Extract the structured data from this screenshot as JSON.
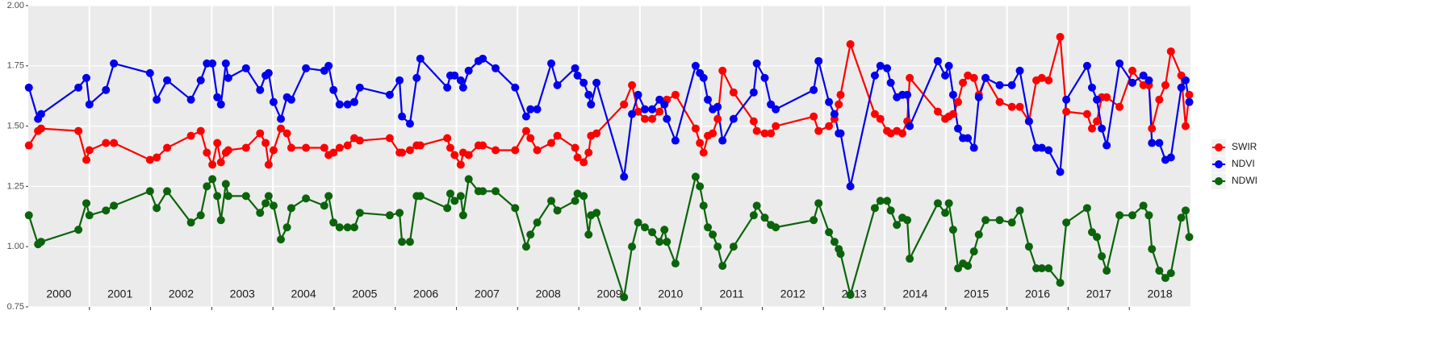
{
  "chart_data": {
    "type": "line",
    "xlim": [
      2000,
      2019
    ],
    "xbreaks": [
      2001,
      2002,
      2003,
      2004,
      2005,
      2006,
      2007,
      2008,
      2009,
      2010,
      2011,
      2012,
      2013,
      2014,
      2015,
      2016,
      2017,
      2018
    ],
    "xticks": [
      {
        "value": 2000.5,
        "label": "2000"
      },
      {
        "value": 2001.5,
        "label": "2001"
      },
      {
        "value": 2002.5,
        "label": "2002"
      },
      {
        "value": 2003.5,
        "label": "2003"
      },
      {
        "value": 2004.5,
        "label": "2004"
      },
      {
        "value": 2005.5,
        "label": "2005"
      },
      {
        "value": 2006.5,
        "label": "2006"
      },
      {
        "value": 2007.5,
        "label": "2007"
      },
      {
        "value": 2008.5,
        "label": "2008"
      },
      {
        "value": 2009.5,
        "label": "2009"
      },
      {
        "value": 2010.5,
        "label": "2010"
      },
      {
        "value": 2011.5,
        "label": "2011"
      },
      {
        "value": 2012.5,
        "label": "2012"
      },
      {
        "value": 2013.5,
        "label": "2013"
      },
      {
        "value": 2014.5,
        "label": "2014"
      },
      {
        "value": 2015.5,
        "label": "2015"
      },
      {
        "value": 2016.5,
        "label": "2016"
      },
      {
        "value": 2017.5,
        "label": "2017"
      },
      {
        "value": 2018.5,
        "label": "2018"
      }
    ],
    "ylim": [
      0.75,
      2.0
    ],
    "yticks": [
      {
        "value": 0.75,
        "label": "0.75"
      },
      {
        "value": 1,
        "label": "1.00"
      },
      {
        "value": 1.25,
        "label": "1.25"
      },
      {
        "value": 1.5,
        "label": "1.50"
      },
      {
        "value": 1.75,
        "label": "1.75"
      },
      {
        "value": 2,
        "label": "2.00"
      }
    ],
    "grid": true,
    "legend": "right",
    "x": [
      2000.01,
      2000.16,
      2000.21,
      2000.82,
      2000.95,
      2001.0,
      2001.27,
      2001.4,
      2001.99,
      2002.1,
      2002.27,
      2002.66,
      2002.82,
      2002.92,
      2003.01,
      2003.09,
      2003.15,
      2003.23,
      2003.27,
      2003.56,
      2003.79,
      2003.88,
      2003.93,
      2004.01,
      2004.13,
      2004.23,
      2004.3,
      2004.54,
      2004.84,
      2004.91,
      2004.99,
      2005.09,
      2005.22,
      2005.33,
      2005.42,
      2005.91,
      2006.07,
      2006.11,
      2006.24,
      2006.35,
      2006.41,
      2006.85,
      2006.9,
      2006.97,
      2007.07,
      2007.11,
      2007.2,
      2007.36,
      2007.43,
      2007.64,
      2007.96,
      2008.14,
      2008.21,
      2008.32,
      2008.55,
      2008.65,
      2008.94,
      2008.98,
      2009.08,
      2009.16,
      2009.2,
      2009.29,
      2009.74,
      2009.87,
      2009.97,
      2010.08,
      2010.2,
      2010.32,
      2010.4,
      2010.44,
      2010.58,
      2010.91,
      2010.98,
      2011.04,
      2011.11,
      2011.19,
      2011.27,
      2011.35,
      2011.53,
      2011.86,
      2011.91,
      2012.04,
      2012.14,
      2012.22,
      2012.84,
      2012.92,
      2013.09,
      2013.18,
      2013.25,
      2013.28,
      2013.44,
      2013.84,
      2013.93,
      2014.04,
      2014.1,
      2014.2,
      2014.29,
      2014.37,
      2014.41,
      2014.87,
      2014.99,
      2015.05,
      2015.12,
      2015.2,
      2015.28,
      2015.36,
      2015.46,
      2015.54,
      2015.65,
      2015.88,
      2016.08,
      2016.21,
      2016.36,
      2016.48,
      2016.57,
      2016.68,
      2016.87,
      2016.97,
      2017.31,
      2017.39,
      2017.47,
      2017.55,
      2017.63,
      2017.84,
      2018.05,
      2018.23,
      2018.32,
      2018.37,
      2018.49,
      2018.59,
      2018.68,
      2018.85,
      2018.92,
      2018.98
    ],
    "series": [
      {
        "name": "SWIR",
        "color": "#ff0000",
        "values": [
          1.42,
          1.48,
          1.49,
          1.48,
          1.36,
          1.4,
          1.43,
          1.43,
          1.36,
          1.37,
          1.41,
          1.46,
          1.48,
          1.39,
          1.34,
          1.43,
          1.35,
          1.39,
          1.4,
          1.41,
          1.47,
          1.43,
          1.34,
          1.4,
          1.49,
          1.47,
          1.41,
          1.41,
          1.41,
          1.38,
          1.39,
          1.41,
          1.42,
          1.45,
          1.44,
          1.45,
          1.39,
          1.39,
          1.4,
          1.42,
          1.42,
          1.45,
          1.41,
          1.38,
          1.34,
          1.39,
          1.38,
          1.42,
          1.42,
          1.4,
          1.4,
          1.48,
          1.45,
          1.4,
          1.43,
          1.46,
          1.41,
          1.37,
          1.35,
          1.39,
          1.46,
          1.47,
          1.59,
          1.67,
          1.56,
          1.53,
          1.53,
          1.56,
          1.6,
          1.61,
          1.63,
          1.49,
          1.43,
          1.39,
          1.46,
          1.47,
          1.53,
          1.73,
          1.64,
          1.52,
          1.48,
          1.47,
          1.47,
          1.5,
          1.54,
          1.48,
          1.5,
          1.53,
          1.59,
          1.63,
          1.84,
          1.55,
          1.53,
          1.48,
          1.47,
          1.48,
          1.47,
          1.52,
          1.7,
          1.56,
          1.53,
          1.54,
          1.55,
          1.6,
          1.68,
          1.71,
          1.7,
          1.63,
          1.7,
          1.6,
          1.58,
          1.58,
          1.52,
          1.69,
          1.7,
          1.69,
          1.87,
          1.56,
          1.55,
          1.49,
          1.52,
          1.62,
          1.62,
          1.58,
          1.73,
          1.67,
          1.67,
          1.49,
          1.61,
          1.67,
          1.81,
          1.71,
          1.5,
          1.63
        ]
      },
      {
        "name": "NDVI",
        "color": "#0000ee",
        "values": [
          1.66,
          1.53,
          1.55,
          1.66,
          1.7,
          1.59,
          1.65,
          1.76,
          1.72,
          1.61,
          1.69,
          1.61,
          1.69,
          1.76,
          1.76,
          1.62,
          1.59,
          1.76,
          1.7,
          1.74,
          1.65,
          1.71,
          1.72,
          1.6,
          1.53,
          1.62,
          1.61,
          1.74,
          1.73,
          1.75,
          1.65,
          1.59,
          1.59,
          1.6,
          1.66,
          1.63,
          1.69,
          1.54,
          1.51,
          1.7,
          1.78,
          1.66,
          1.71,
          1.71,
          1.69,
          1.66,
          1.73,
          1.77,
          1.78,
          1.74,
          1.66,
          1.54,
          1.57,
          1.57,
          1.76,
          1.67,
          1.74,
          1.71,
          1.68,
          1.63,
          1.59,
          1.68,
          1.29,
          1.55,
          1.63,
          1.57,
          1.57,
          1.61,
          1.59,
          1.53,
          1.44,
          1.75,
          1.72,
          1.7,
          1.61,
          1.57,
          1.58,
          1.44,
          1.53,
          1.64,
          1.76,
          1.7,
          1.59,
          1.57,
          1.65,
          1.77,
          1.6,
          1.55,
          1.47,
          1.47,
          1.25,
          1.71,
          1.75,
          1.74,
          1.68,
          1.62,
          1.63,
          1.63,
          1.5,
          1.77,
          1.71,
          1.75,
          1.63,
          1.49,
          1.45,
          1.45,
          1.41,
          1.62,
          1.7,
          1.67,
          1.67,
          1.73,
          1.52,
          1.41,
          1.41,
          1.4,
          1.31,
          1.61,
          1.75,
          1.66,
          1.61,
          1.49,
          1.42,
          1.76,
          1.68,
          1.71,
          1.69,
          1.43,
          1.43,
          1.36,
          1.37,
          1.66,
          1.69,
          1.6
        ]
      },
      {
        "name": "NDWI",
        "color": "#0b640b",
        "values": [
          1.13,
          1.01,
          1.02,
          1.07,
          1.18,
          1.13,
          1.15,
          1.17,
          1.23,
          1.16,
          1.23,
          1.1,
          1.13,
          1.25,
          1.28,
          1.21,
          1.11,
          1.26,
          1.21,
          1.21,
          1.14,
          1.18,
          1.21,
          1.17,
          1.03,
          1.08,
          1.16,
          1.2,
          1.17,
          1.21,
          1.1,
          1.08,
          1.08,
          1.08,
          1.14,
          1.13,
          1.14,
          1.02,
          1.02,
          1.21,
          1.21,
          1.16,
          1.22,
          1.19,
          1.21,
          1.13,
          1.28,
          1.23,
          1.23,
          1.23,
          1.16,
          1.0,
          1.05,
          1.1,
          1.19,
          1.15,
          1.19,
          1.22,
          1.21,
          1.05,
          1.13,
          1.14,
          0.79,
          1.0,
          1.1,
          1.08,
          1.06,
          1.02,
          1.07,
          1.02,
          0.93,
          1.29,
          1.25,
          1.17,
          1.08,
          1.05,
          1.0,
          0.92,
          1.0,
          1.13,
          1.17,
          1.12,
          1.09,
          1.08,
          1.11,
          1.18,
          1.06,
          1.02,
          0.99,
          0.97,
          0.8,
          1.16,
          1.19,
          1.19,
          1.15,
          1.09,
          1.12,
          1.11,
          0.95,
          1.18,
          1.14,
          1.18,
          1.07,
          0.91,
          0.93,
          0.92,
          0.98,
          1.05,
          1.11,
          1.11,
          1.1,
          1.15,
          1.0,
          0.91,
          0.91,
          0.91,
          0.85,
          1.1,
          1.16,
          1.06,
          1.04,
          0.96,
          0.9,
          1.13,
          1.13,
          1.17,
          1.13,
          0.99,
          0.9,
          0.87,
          0.89,
          1.12,
          1.15,
          1.04
        ]
      }
    ]
  }
}
